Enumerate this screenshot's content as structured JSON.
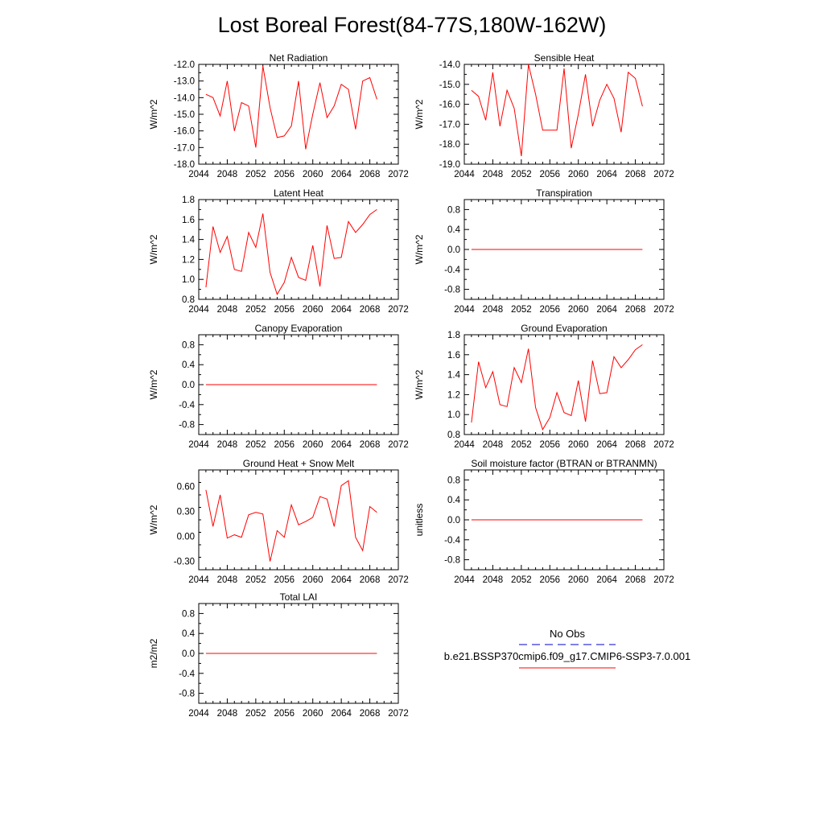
{
  "figure": {
    "title": "Lost Boreal Forest(84-77S,180W-162W)",
    "line_color": "#ff0000",
    "legend": {
      "obs_label": "No Obs",
      "obs_color": "#0000cc",
      "case_label": "b.e21.BSSP370cmip6.f09_g17.CMIP6-SSP3-7.0.001",
      "case_color": "#ff0000"
    }
  },
  "chart_data": [
    {
      "type": "line",
      "title": "Net Radiation",
      "ylabel": "W/m^2",
      "xlim": [
        2044,
        2072
      ],
      "xticks": [
        2044,
        2048,
        2052,
        2056,
        2060,
        2064,
        2068,
        2072
      ],
      "ylim": [
        -18.0,
        -12.0
      ],
      "yticks": [
        "-12.0",
        "-13.0",
        "-14.0",
        "-15.0",
        "-16.0",
        "-17.0",
        "-18.0"
      ],
      "x": [
        2045,
        2046,
        2047,
        2048,
        2049,
        2050,
        2051,
        2052,
        2053,
        2054,
        2055,
        2056,
        2057,
        2058,
        2059,
        2060,
        2061,
        2062,
        2063,
        2064,
        2065,
        2066,
        2067,
        2068,
        2069
      ],
      "y": [
        -13.8,
        -14.0,
        -15.1,
        -13.0,
        -16.0,
        -14.3,
        -14.5,
        -17.0,
        -12.1,
        -14.6,
        -16.4,
        -16.3,
        -15.7,
        -13.0,
        -17.1,
        -15.0,
        -13.1,
        -15.2,
        -14.5,
        -13.2,
        -13.5,
        -15.9,
        -13.0,
        -12.8,
        -14.1
      ]
    },
    {
      "type": "line",
      "title": "Sensible Heat",
      "ylabel": "W/m^2",
      "xlim": [
        2044,
        2072
      ],
      "xticks": [
        2044,
        2048,
        2052,
        2056,
        2060,
        2064,
        2068,
        2072
      ],
      "ylim": [
        -19.0,
        -14.0
      ],
      "yticks": [
        "-14.0",
        "-15.0",
        "-16.0",
        "-17.0",
        "-18.0",
        "-19.0"
      ],
      "x": [
        2045,
        2046,
        2047,
        2048,
        2049,
        2050,
        2051,
        2052,
        2053,
        2054,
        2055,
        2056,
        2057,
        2058,
        2059,
        2060,
        2061,
        2062,
        2063,
        2064,
        2065,
        2066,
        2067,
        2068,
        2069
      ],
      "y": [
        -15.3,
        -15.6,
        -16.8,
        -14.4,
        -17.1,
        -15.3,
        -16.2,
        -18.6,
        -14.0,
        -15.5,
        -17.3,
        -17.3,
        -17.3,
        -14.2,
        -18.2,
        -16.5,
        -14.5,
        -17.1,
        -15.8,
        -15.0,
        -15.7,
        -17.4,
        -14.4,
        -14.7,
        -16.1
      ]
    },
    {
      "type": "line",
      "title": "Latent Heat",
      "ylabel": "W/m^2",
      "xlim": [
        2044,
        2072
      ],
      "xticks": [
        2044,
        2048,
        2052,
        2056,
        2060,
        2064,
        2068,
        2072
      ],
      "ylim": [
        0.8,
        1.8
      ],
      "yticks": [
        "1.8",
        "1.6",
        "1.4",
        "1.2",
        "1.0",
        "0.8"
      ],
      "x": [
        2045,
        2046,
        2047,
        2048,
        2049,
        2050,
        2051,
        2052,
        2053,
        2054,
        2055,
        2056,
        2057,
        2058,
        2059,
        2060,
        2061,
        2062,
        2063,
        2064,
        2065,
        2066,
        2067,
        2068,
        2069
      ],
      "y": [
        0.92,
        1.53,
        1.27,
        1.43,
        1.1,
        1.08,
        1.47,
        1.32,
        1.66,
        1.07,
        0.85,
        0.97,
        1.22,
        1.02,
        0.99,
        1.34,
        0.93,
        1.54,
        1.21,
        1.22,
        1.58,
        1.47,
        1.55,
        1.65,
        1.7
      ]
    },
    {
      "type": "line",
      "title": "Transpiration",
      "ylabel": "W/m^2",
      "xlim": [
        2044,
        2072
      ],
      "xticks": [
        2044,
        2048,
        2052,
        2056,
        2060,
        2064,
        2068,
        2072
      ],
      "ylim": [
        -1.0,
        1.0
      ],
      "yticks": [
        "0.8",
        "0.4",
        "0.0",
        "-0.4",
        "-0.8"
      ],
      "x": [
        2045,
        2046,
        2047,
        2048,
        2049,
        2050,
        2051,
        2052,
        2053,
        2054,
        2055,
        2056,
        2057,
        2058,
        2059,
        2060,
        2061,
        2062,
        2063,
        2064,
        2065,
        2066,
        2067,
        2068,
        2069
      ],
      "y": [
        0,
        0,
        0,
        0,
        0,
        0,
        0,
        0,
        0,
        0,
        0,
        0,
        0,
        0,
        0,
        0,
        0,
        0,
        0,
        0,
        0,
        0,
        0,
        0,
        0
      ]
    },
    {
      "type": "line",
      "title": "Canopy Evaporation",
      "ylabel": "W/m^2",
      "xlim": [
        2044,
        2072
      ],
      "xticks": [
        2044,
        2048,
        2052,
        2056,
        2060,
        2064,
        2068,
        2072
      ],
      "ylim": [
        -1.0,
        1.0
      ],
      "yticks": [
        "0.8",
        "0.4",
        "0.0",
        "-0.4",
        "-0.8"
      ],
      "x": [
        2045,
        2046,
        2047,
        2048,
        2049,
        2050,
        2051,
        2052,
        2053,
        2054,
        2055,
        2056,
        2057,
        2058,
        2059,
        2060,
        2061,
        2062,
        2063,
        2064,
        2065,
        2066,
        2067,
        2068,
        2069
      ],
      "y": [
        0,
        0,
        0,
        0,
        0,
        0,
        0,
        0,
        0,
        0,
        0,
        0,
        0,
        0,
        0,
        0,
        0,
        0,
        0,
        0,
        0,
        0,
        0,
        0,
        0
      ]
    },
    {
      "type": "line",
      "title": "Ground Evaporation",
      "ylabel": "W/m^2",
      "xlim": [
        2044,
        2072
      ],
      "xticks": [
        2044,
        2048,
        2052,
        2056,
        2060,
        2064,
        2068,
        2072
      ],
      "ylim": [
        0.8,
        1.8
      ],
      "yticks": [
        "1.8",
        "1.6",
        "1.4",
        "1.2",
        "1.0",
        "0.8"
      ],
      "x": [
        2045,
        2046,
        2047,
        2048,
        2049,
        2050,
        2051,
        2052,
        2053,
        2054,
        2055,
        2056,
        2057,
        2058,
        2059,
        2060,
        2061,
        2062,
        2063,
        2064,
        2065,
        2066,
        2067,
        2068,
        2069
      ],
      "y": [
        0.92,
        1.53,
        1.27,
        1.43,
        1.1,
        1.08,
        1.47,
        1.32,
        1.66,
        1.07,
        0.85,
        0.97,
        1.22,
        1.02,
        0.99,
        1.34,
        0.93,
        1.54,
        1.21,
        1.22,
        1.58,
        1.47,
        1.55,
        1.65,
        1.7
      ]
    },
    {
      "type": "line",
      "title": "Ground Heat + Snow Melt",
      "ylabel": "W/m^2",
      "xlim": [
        2044,
        2072
      ],
      "xticks": [
        2044,
        2048,
        2052,
        2056,
        2060,
        2064,
        2068,
        2072
      ],
      "ylim": [
        -0.4,
        0.8
      ],
      "yticks": [
        "0.60",
        "0.30",
        "0.00",
        "-0.30"
      ],
      "x": [
        2045,
        2046,
        2047,
        2048,
        2049,
        2050,
        2051,
        2052,
        2053,
        2054,
        2055,
        2056,
        2057,
        2058,
        2059,
        2060,
        2061,
        2062,
        2063,
        2064,
        2065,
        2066,
        2067,
        2068,
        2069
      ],
      "y": [
        0.56,
        0.12,
        0.5,
        -0.02,
        0.02,
        -0.01,
        0.26,
        0.29,
        0.27,
        -0.3,
        0.07,
        -0.01,
        0.38,
        0.14,
        0.18,
        0.23,
        0.48,
        0.45,
        0.12,
        0.61,
        0.67,
        -0.01,
        -0.17,
        0.36,
        0.29
      ]
    },
    {
      "type": "line",
      "title": "Soil moisture factor (BTRAN or BTRANMN)",
      "ylabel": "unitless",
      "xlim": [
        2044,
        2072
      ],
      "xticks": [
        2044,
        2048,
        2052,
        2056,
        2060,
        2064,
        2068,
        2072
      ],
      "ylim": [
        -1.0,
        1.0
      ],
      "yticks": [
        "0.8",
        "0.4",
        "0.0",
        "-0.4",
        "-0.8"
      ],
      "x": [
        2045,
        2046,
        2047,
        2048,
        2049,
        2050,
        2051,
        2052,
        2053,
        2054,
        2055,
        2056,
        2057,
        2058,
        2059,
        2060,
        2061,
        2062,
        2063,
        2064,
        2065,
        2066,
        2067,
        2068,
        2069
      ],
      "y": [
        0,
        0,
        0,
        0,
        0,
        0,
        0,
        0,
        0,
        0,
        0,
        0,
        0,
        0,
        0,
        0,
        0,
        0,
        0,
        0,
        0,
        0,
        0,
        0,
        0
      ]
    },
    {
      "type": "line",
      "title": "Total LAI",
      "ylabel": "m2/m2",
      "xlim": [
        2044,
        2072
      ],
      "xticks": [
        2044,
        2048,
        2052,
        2056,
        2060,
        2064,
        2068,
        2072
      ],
      "ylim": [
        -1.0,
        1.0
      ],
      "yticks": [
        "0.8",
        "0.4",
        "0.0",
        "-0.4",
        "-0.8"
      ],
      "x": [
        2045,
        2046,
        2047,
        2048,
        2049,
        2050,
        2051,
        2052,
        2053,
        2054,
        2055,
        2056,
        2057,
        2058,
        2059,
        2060,
        2061,
        2062,
        2063,
        2064,
        2065,
        2066,
        2067,
        2068,
        2069
      ],
      "y": [
        0,
        0,
        0,
        0,
        0,
        0,
        0,
        0,
        0,
        0,
        0,
        0,
        0,
        0,
        0,
        0,
        0,
        0,
        0,
        0,
        0,
        0,
        0,
        0,
        0
      ]
    }
  ]
}
